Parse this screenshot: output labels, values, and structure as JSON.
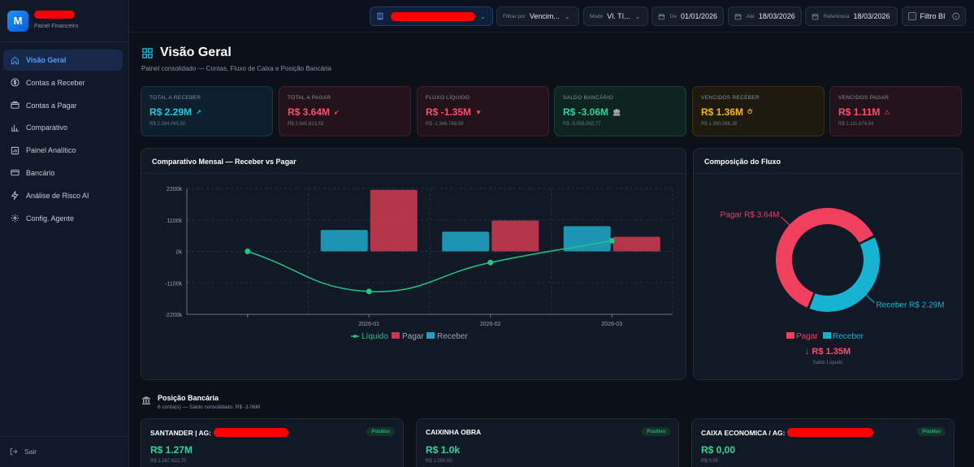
{
  "brand": {
    "logo_letter": "M",
    "subtitle": "Painel Financeiro"
  },
  "nav": {
    "items": [
      {
        "label": "Visão Geral"
      },
      {
        "label": "Contas a Receber"
      },
      {
        "label": "Contas a Pagar"
      },
      {
        "label": "Comparativo"
      },
      {
        "label": "Painel Analítico"
      },
      {
        "label": "Bancário"
      },
      {
        "label": "Análise de Risco AI"
      },
      {
        "label": "Config. Agente"
      }
    ],
    "logout": "Sair"
  },
  "topbar": {
    "filter_label": "Filtrar por",
    "filter_value": "Vencim...",
    "mode_label": "Modo",
    "mode_value": "Vl. Tí...",
    "from_label": "De",
    "from_value": "01/01/2026",
    "to_label": "Até",
    "to_value": "18/03/2026",
    "ref_label": "Referência",
    "ref_value": "18/03/2026",
    "bi_label": "Filtro BI"
  },
  "page": {
    "title": "Visão Geral",
    "subtitle": "Painel consolidado — Contas, Fluxo de Caixa e Posição Bancária"
  },
  "kpis": [
    {
      "label": "Total a Receber",
      "value": "R$ 2.29M",
      "icon": "↗",
      "sub": "R$ 2.294.045,50"
    },
    {
      "label": "Total a Pagar",
      "value": "R$ 3.64M",
      "icon": "↙",
      "sub": "R$ 3.640.813,59"
    },
    {
      "label": "Fluxo Líquido",
      "value": "R$ -1.35M",
      "icon": "▼",
      "sub": "R$ -1.346.768,09"
    },
    {
      "label": "Saldo Bancário",
      "value": "R$ -3.06M",
      "icon": "🏛",
      "sub": "R$ -3.059.060,77"
    },
    {
      "label": "Vencidos Receber",
      "value": "R$ 1.36M",
      "icon": "⏱",
      "sub": "R$ 1.360.066,28"
    },
    {
      "label": "Vencidos Pagar",
      "value": "R$ 1.11M",
      "icon": "⚠",
      "sub": "R$ 1.111.874,84"
    }
  ],
  "colors": {
    "receber": "#1fa2c2",
    "pagar": "#c8384f",
    "liquido": "#22c583",
    "donut_receber": "#16b3d3",
    "donut_pagar": "#f0405e"
  },
  "chart_data": [
    {
      "type": "bar",
      "title": "Comparativo Mensal — Receber vs Pagar",
      "categories": [
        "",
        "2026-01",
        "2026-02",
        "2026-03"
      ],
      "yticks": [
        "2200k",
        "1100k",
        "0k",
        "-1100k",
        "-2200k"
      ],
      "ylim": [
        -2200,
        2200
      ],
      "series": [
        {
          "name": "Receber",
          "kind": "bar",
          "values": [
            0,
            750,
            690,
            880
          ]
        },
        {
          "name": "Pagar",
          "kind": "bar",
          "values": [
            0,
            2150,
            1080,
            510
          ]
        },
        {
          "name": "Líquido",
          "kind": "line",
          "values": [
            0,
            -1400,
            -390,
            370
          ]
        }
      ],
      "legend": [
        "Líquido",
        "Pagar",
        "Receber"
      ]
    },
    {
      "type": "pie",
      "title": "Composição do Fluxo",
      "slices": [
        {
          "name": "Receber",
          "label": "Receber R$ 2.29M",
          "value": 2.29
        },
        {
          "name": "Pagar",
          "label": "Pagar R$ 3.64M",
          "value": 3.64
        }
      ],
      "legend": [
        "Pagar",
        "Receber"
      ],
      "net_value": "↓ R$ 1.35M",
      "net_label": "Saldo Líquido"
    }
  ],
  "bank_section": {
    "title": "Posição Bancária",
    "subtitle": "6 conta(s) — Saldo consolidado: R$ -3.06M",
    "accounts": [
      {
        "name": "SANTANDER | AG: ",
        "badge": "Positivo",
        "value": "R$ 1.27M",
        "sub": "R$ 1.267.622,70"
      },
      {
        "name": "CAIXINHA OBRA",
        "badge": "Positivo",
        "value": "R$ 1.0k",
        "sub": "R$ 1.000,00"
      },
      {
        "name": "CAIXA ECONOMICA / AG: ",
        "badge": "Positivo",
        "value": "R$ 0,00",
        "sub": "R$ 0,00"
      }
    ]
  }
}
